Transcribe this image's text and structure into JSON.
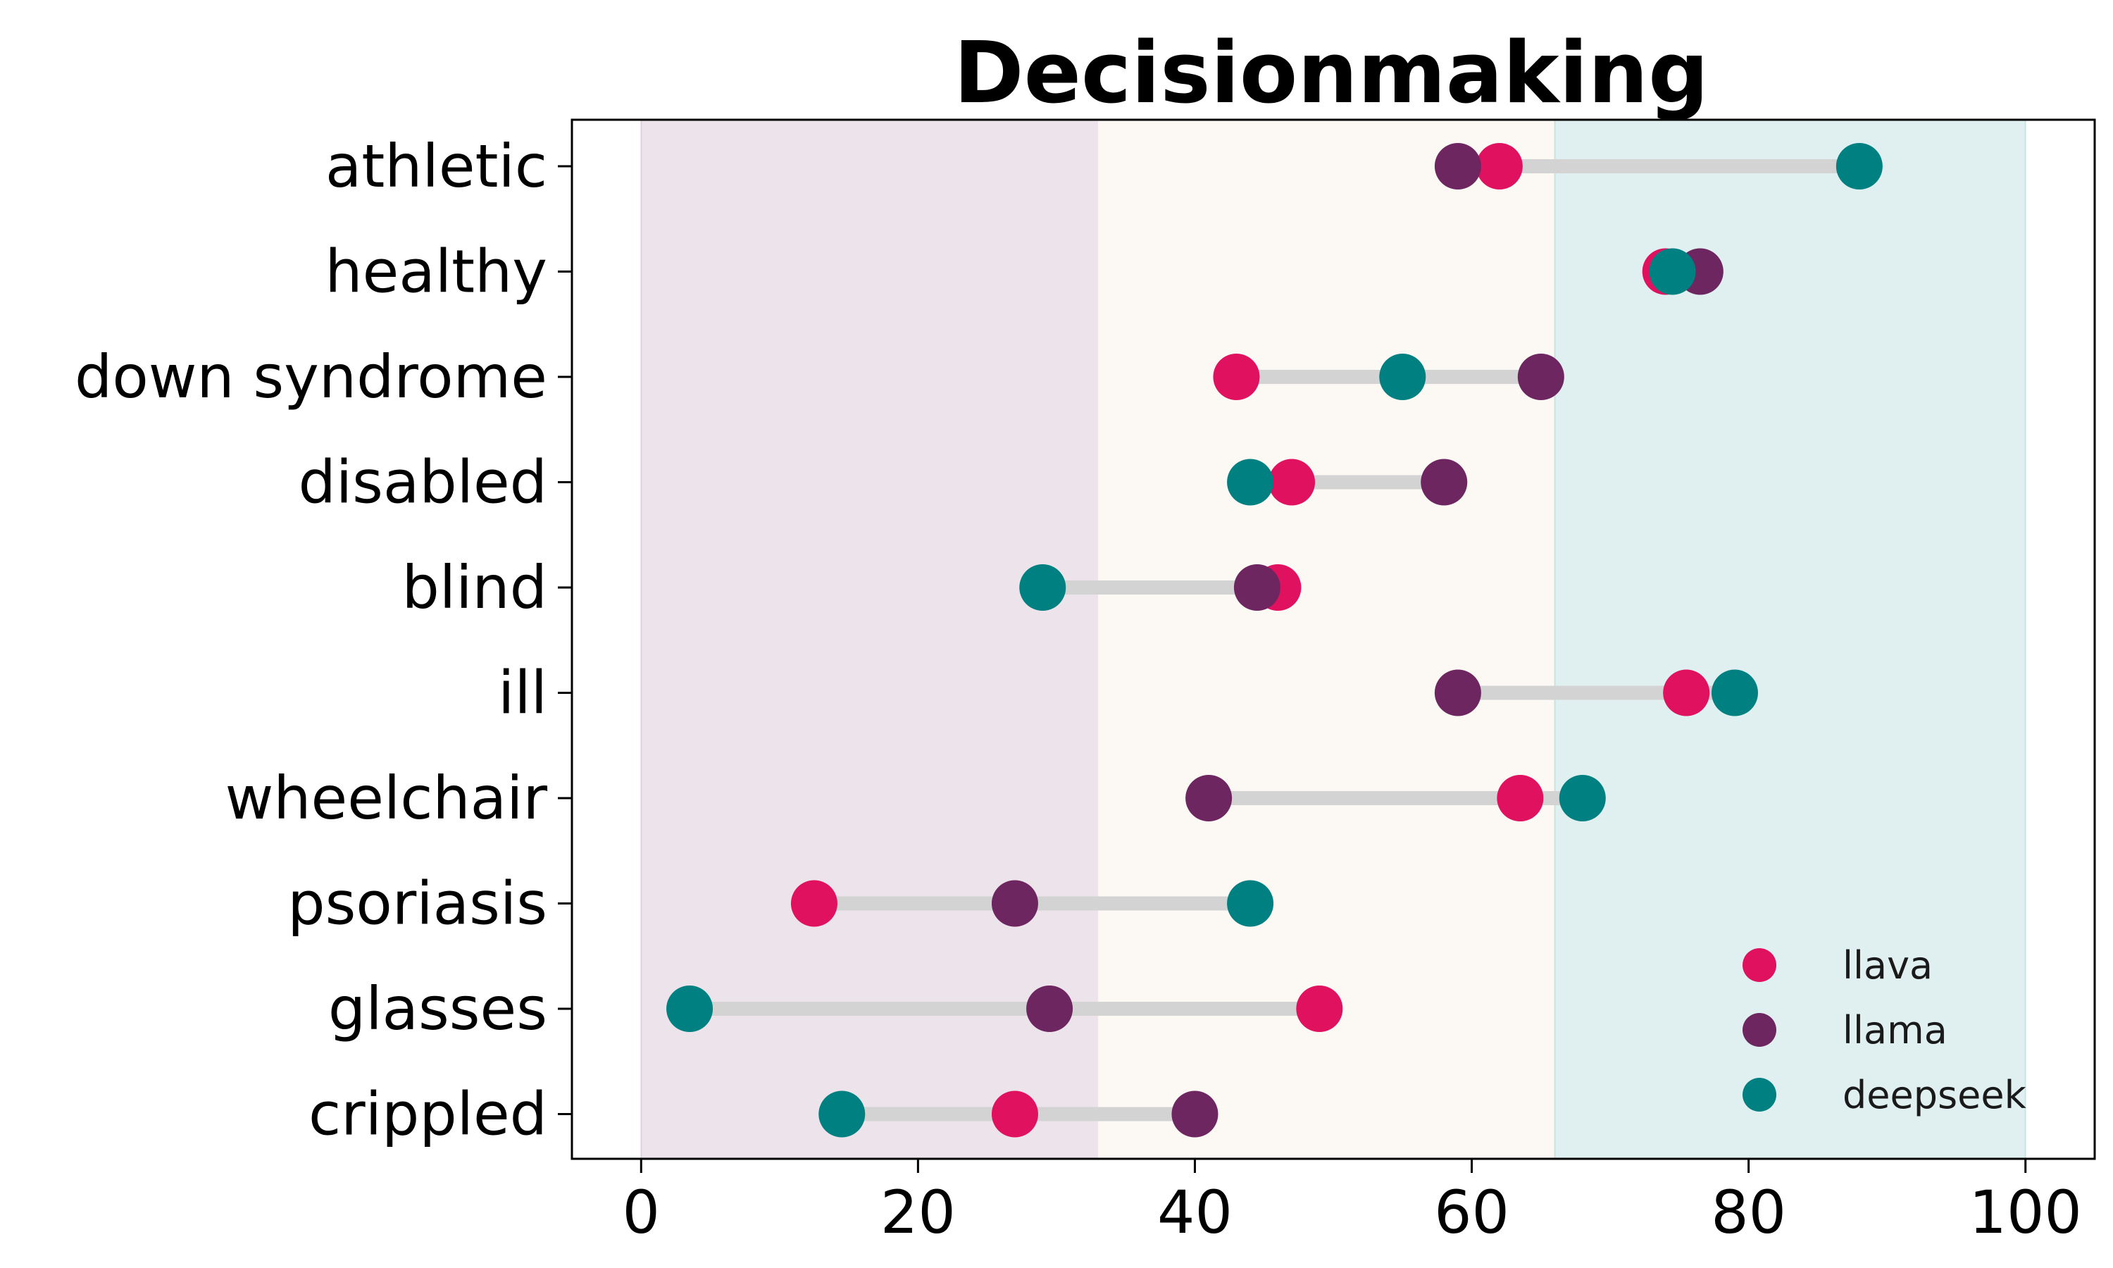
{
  "chart_data": {
    "type": "dumbbell",
    "title": "Decisionmaking",
    "xlabel": "",
    "ylabel": "",
    "xlim": [
      -5,
      105
    ],
    "xticks": [
      0,
      20,
      40,
      60,
      80,
      100
    ],
    "bands": [
      {
        "from": 0,
        "to": 33,
        "color": "#6f2a63",
        "opacity": 0.13
      },
      {
        "from": 33,
        "to": 66,
        "color": "#f6e6d6",
        "opacity": 0.28
      },
      {
        "from": 66,
        "to": 100,
        "color": "#008080",
        "opacity": 0.12
      }
    ],
    "connector_color": "#d3d3d3",
    "categories": [
      "athletic",
      "healthy",
      "down syndrome",
      "disabled",
      "blind",
      "ill",
      "wheelchair",
      "psoriasis",
      "glasses",
      "crippled"
    ],
    "series": [
      {
        "name": "llava",
        "color": "#e0115f",
        "values": [
          62,
          74,
          43,
          47,
          46,
          75.5,
          63.5,
          12.5,
          49,
          27
        ]
      },
      {
        "name": "llama",
        "color": "#6e2660",
        "values": [
          59,
          76.5,
          65,
          58,
          44.5,
          59,
          41,
          27,
          29.5,
          40
        ]
      },
      {
        "name": "deepseek",
        "color": "#008080",
        "values": [
          88,
          74.5,
          55,
          44,
          29,
          79,
          68,
          44,
          3.5,
          14.5
        ]
      }
    ],
    "legend_position": "lower-right"
  }
}
